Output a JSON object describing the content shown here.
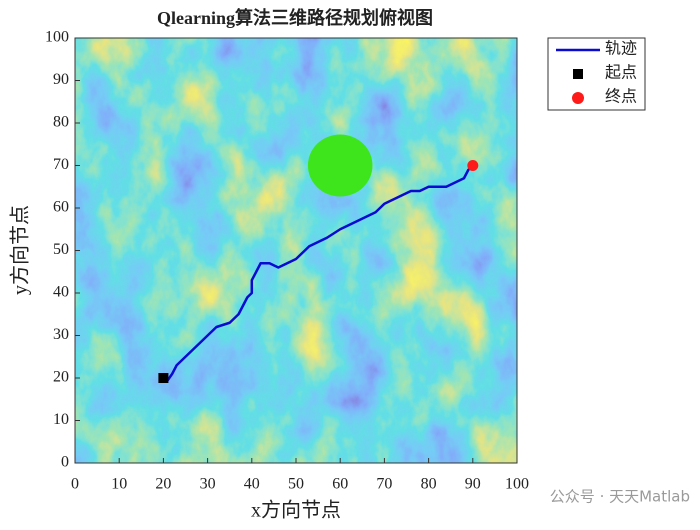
{
  "chart_data": {
    "type": "line",
    "title": "Qlearning算法三维路径规划俯视图",
    "xlabel": "x方向节点",
    "ylabel": "y方向节点",
    "xlim": [
      0,
      100
    ],
    "ylim": [
      0,
      100
    ],
    "xticks": [
      0,
      10,
      20,
      30,
      40,
      50,
      60,
      70,
      80,
      90,
      100
    ],
    "yticks": [
      0,
      10,
      20,
      30,
      40,
      50,
      60,
      70,
      80,
      90,
      100
    ],
    "legend": "northeastoutside",
    "obstacle": {
      "center": [
        60,
        70
      ],
      "radius": 7.3,
      "color": "#3ee51c"
    },
    "series": [
      {
        "name": "轨迹",
        "color": "#0a0ad0",
        "marker": "none",
        "x": [
          20,
          21,
          22,
          23,
          25,
          27,
          28,
          30,
          32,
          35,
          37,
          38,
          39,
          40,
          40,
          41,
          42,
          44,
          46,
          48,
          50,
          52,
          53,
          55,
          57,
          60,
          62,
          64,
          66,
          68,
          70,
          72,
          74,
          76,
          78,
          80,
          82,
          84,
          86,
          88,
          89,
          90
        ],
        "y": [
          20,
          19.5,
          21,
          23,
          25,
          27,
          28,
          30,
          32,
          33,
          35,
          37,
          39,
          40,
          43,
          45,
          47,
          47,
          46,
          47,
          48,
          50,
          51,
          52,
          53,
          55,
          56,
          57,
          58,
          59,
          61,
          62,
          63,
          64,
          64,
          65,
          65,
          65,
          66,
          67,
          69,
          70
        ]
      },
      {
        "name": "起点",
        "color": "#000000",
        "marker": "square",
        "x": [
          20
        ],
        "y": [
          20
        ]
      },
      {
        "name": "终点",
        "color": "#ff1a1a",
        "marker": "circle",
        "x": [
          90
        ],
        "y": [
          70
        ]
      }
    ]
  },
  "watermark": "公众号 · 天天Matlab"
}
